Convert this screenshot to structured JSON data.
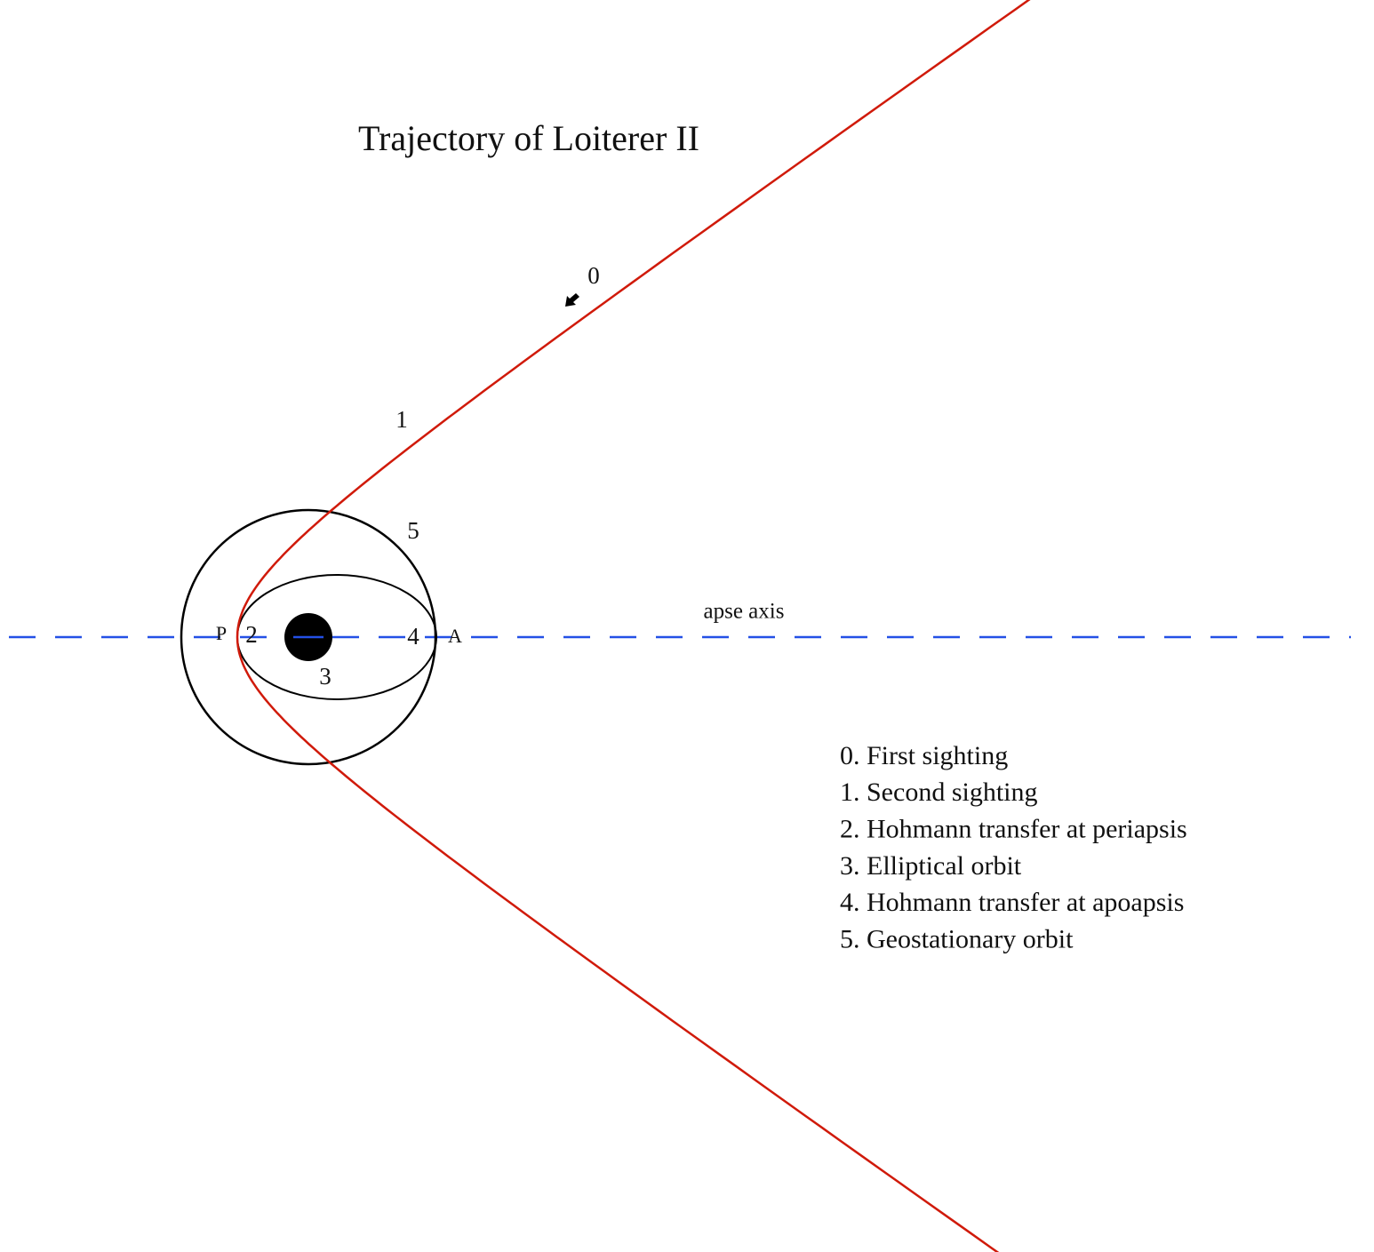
{
  "title": "Trajectory of Loiterer II",
  "markers": [
    "0",
    "1",
    "2",
    "3",
    "4",
    "5"
  ],
  "apsides": {
    "periapsis": "P",
    "apoapsis": "A"
  },
  "axis_label": "apse axis",
  "legend": [
    "0. First sighting",
    "1. Second sighting",
    "2. Hohmann transfer at periapsis",
    "3. Elliptical orbit",
    "4. Hohmann transfer at apoapsis",
    "5. Geostationary orbit"
  ]
}
